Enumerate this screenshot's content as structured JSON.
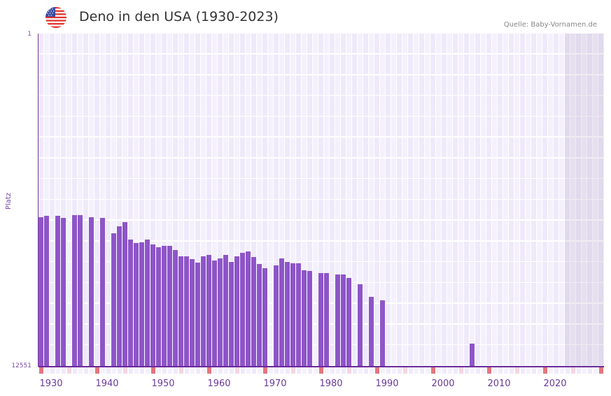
{
  "header": {
    "flag_icon": "us-flag-icon",
    "title": "Deno in den USA (1930-2023)",
    "source": "Quelle: Baby-Vornamen.de"
  },
  "axes": {
    "y_title": "Platz",
    "y_top_label": "1",
    "y_bottom_label": "12551",
    "x_labels": [
      "1930",
      "1940",
      "1950",
      "1960",
      "1970",
      "1980",
      "1990",
      "2000",
      "2010",
      "2020"
    ]
  },
  "colors": {
    "bar": "#8e55c8",
    "grid_bg_a": "#efeafa",
    "grid_bg_b": "#f4f1fc",
    "tick_major": "#e4767e",
    "tick_minor": "#f6d6e0",
    "axis": "#6a2a9a"
  },
  "chart_data": {
    "type": "bar",
    "title": "Deno in den USA (1930-2023)",
    "xlabel": "",
    "ylabel": "Platz",
    "ylim": [
      12551,
      1
    ],
    "y_inverted": true,
    "x_range": [
      1928,
      2028
    ],
    "shaded_from_year": 2022,
    "categories": [
      1928,
      1929,
      1931,
      1932,
      1934,
      1935,
      1937,
      1939,
      1941,
      1942,
      1943,
      1944,
      1945,
      1946,
      1947,
      1948,
      1949,
      1950,
      1951,
      1952,
      1953,
      1954,
      1955,
      1956,
      1957,
      1958,
      1959,
      1960,
      1961,
      1962,
      1963,
      1964,
      1965,
      1966,
      1967,
      1968,
      1970,
      1971,
      1972,
      1973,
      1974,
      1975,
      1976,
      1978,
      1979,
      1981,
      1982,
      1983,
      1985,
      1987,
      1989,
      2005
    ],
    "values": [
      6934,
      6881,
      6881,
      6960,
      6855,
      6855,
      6934,
      6960,
      7540,
      7277,
      7118,
      7777,
      7908,
      7882,
      7777,
      7961,
      8066,
      8013,
      8013,
      8172,
      8409,
      8409,
      8515,
      8646,
      8409,
      8356,
      8567,
      8488,
      8356,
      8620,
      8409,
      8277,
      8225,
      8436,
      8699,
      8857,
      8752,
      8488,
      8620,
      8673,
      8673,
      8936,
      8962,
      9041,
      9041,
      9094,
      9094,
      9226,
      9463,
      9938,
      10069,
      11700
    ],
    "legend": []
  }
}
